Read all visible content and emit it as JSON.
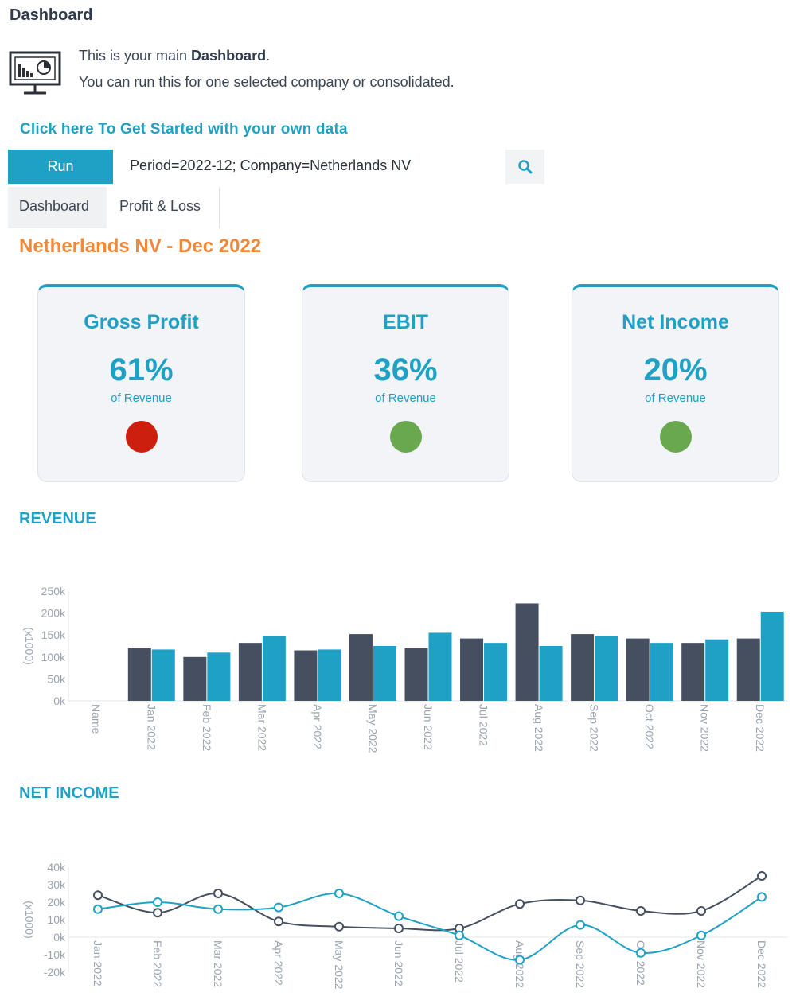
{
  "header": {
    "title": "Dashboard"
  },
  "intro": {
    "line1_prefix": "This is your main ",
    "line1_bold": "Dashboard",
    "line1_suffix": ".",
    "line2": "You can run this for one selected company or consolidated.",
    "icon": "dashboard-monitor-icon"
  },
  "get_started_label": "Click here To Get Started with your own data",
  "toolbar": {
    "run_label": "Run",
    "params": "Period=2022-12; Company=Netherlands NV",
    "search_icon": "search-icon"
  },
  "tabs": [
    {
      "label": "Dashboard"
    },
    {
      "label": "Profit & Loss"
    }
  ],
  "report_title": "Netherlands NV - Dec 2022",
  "kpis": [
    {
      "title": "Gross Profit",
      "value": "61%",
      "sub": "of Revenue",
      "status_color": "#cc1f0e"
    },
    {
      "title": "EBIT",
      "value": "36%",
      "sub": "of Revenue",
      "status_color": "#6aa84f"
    },
    {
      "title": "Net Income",
      "value": "20%",
      "sub": "of Revenue",
      "status_color": "#6aa84f"
    }
  ],
  "colors": {
    "accent": "#1fa1c6",
    "dark_series": "#454f5f",
    "orange": "#f0893a"
  },
  "chart_data": [
    {
      "type": "bar",
      "title": "REVENUE",
      "ylabel": "(x1000)",
      "ylim": [
        0,
        250
      ],
      "yticks": [
        "0k",
        "50k",
        "100k",
        "150k",
        "200k",
        "250k"
      ],
      "categories": [
        "Name",
        "Jan 2022",
        "Feb 2022",
        "Mar 2022",
        "Apr 2022",
        "May 2022",
        "Jun 2022",
        "Jul 2022",
        "Aug 2022",
        "Sep 2022",
        "Oct 2022",
        "Nov 2022",
        "Dec 2022"
      ],
      "series": [
        {
          "color": "#454f5f",
          "values": [
            null,
            120,
            100,
            132,
            115,
            152,
            120,
            142,
            222,
            152,
            142,
            132,
            142
          ]
        },
        {
          "color": "#1fa1c6",
          "values": [
            null,
            117,
            110,
            147,
            117,
            125,
            155,
            132,
            125,
            147,
            132,
            140,
            203
          ]
        }
      ]
    },
    {
      "type": "line",
      "title": "NET INCOME",
      "ylabel": "(x1000)",
      "ylim": [
        -20,
        40
      ],
      "yticks": [
        "-20k",
        "-10k",
        "0k",
        "10k",
        "20k",
        "30k",
        "40k"
      ],
      "categories": [
        "Jan 2022",
        "Feb 2022",
        "Mar 2022",
        "Apr 2022",
        "May 2022",
        "Jun 2022",
        "Jul 2022",
        "Aug 2022",
        "Sep 2022",
        "Oct 2022",
        "Nov 2022",
        "Dec 2022"
      ],
      "series": [
        {
          "color": "#454f5f",
          "values": [
            24,
            14,
            25,
            9,
            6,
            5,
            5,
            19,
            21,
            15,
            15,
            35
          ]
        },
        {
          "color": "#1fa1c6",
          "values": [
            16,
            20,
            16,
            17,
            25,
            12,
            1,
            -13,
            7,
            -9,
            1,
            23
          ]
        }
      ]
    }
  ]
}
